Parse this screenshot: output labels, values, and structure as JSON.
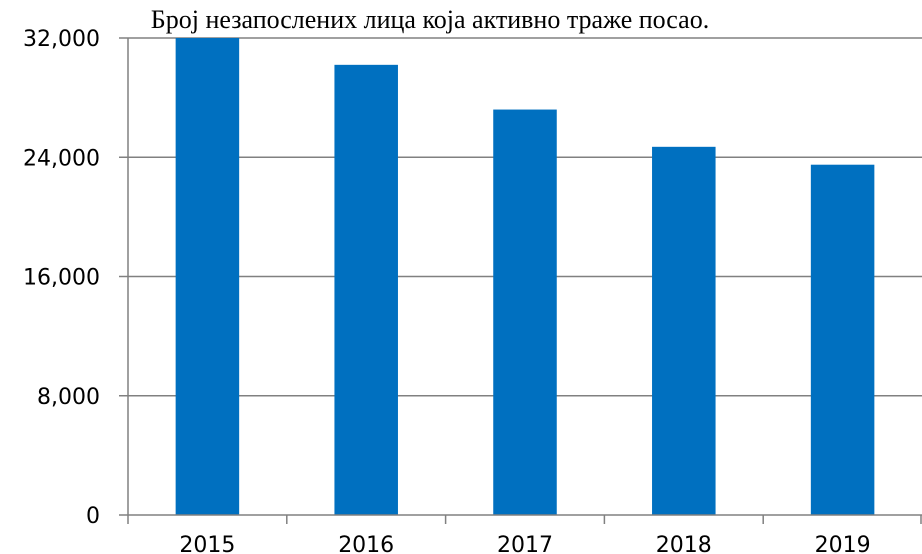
{
  "chart_data": {
    "type": "bar",
    "title": "Број незапослених лица која активно траже посао.",
    "categories": [
      "2015",
      "2016",
      "2017",
      "2018",
      "2019"
    ],
    "values": [
      32000,
      30200,
      27200,
      24700,
      23500
    ],
    "ylim": [
      0,
      32000
    ],
    "yticks": [
      0,
      8000,
      16000,
      24000,
      32000
    ],
    "ytick_labels": [
      "0",
      "8,000",
      "16,000",
      "24,000",
      "32,000"
    ],
    "xlabel": "",
    "ylabel": "",
    "grid": true,
    "legend": "none",
    "bar_color": "#0070C0",
    "grid_color": "#808080"
  }
}
